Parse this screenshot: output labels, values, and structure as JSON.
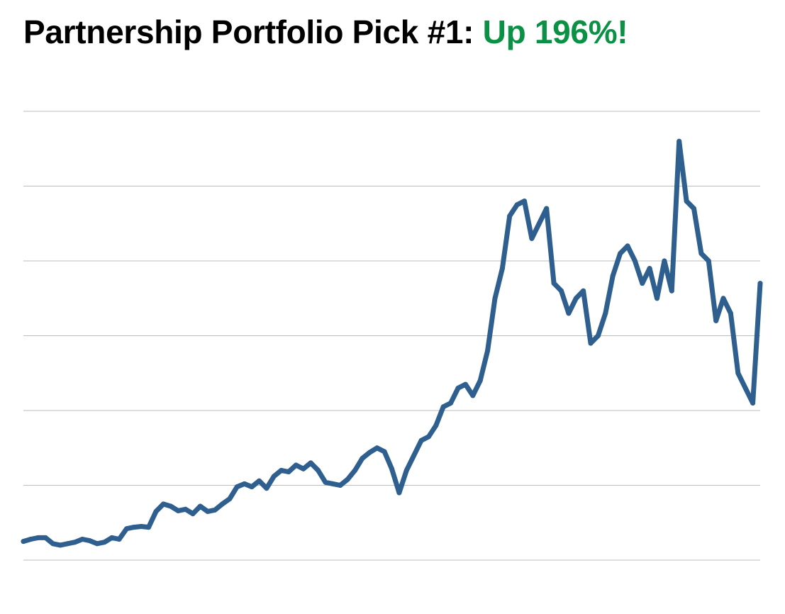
{
  "header": {
    "title": "Partnership Portfolio Pick #1:",
    "highlight": "Up 196%!"
  },
  "colors": {
    "line": "#2e5f8e",
    "gridline": "#bdbdbd",
    "highlight": "#0a9146",
    "title": "#000000"
  },
  "chart_data": {
    "type": "line",
    "title": "Partnership Portfolio Pick #1: Up 196%!",
    "xlabel": "",
    "ylabel": "",
    "y_tick_labels_shown": false,
    "x_tick_labels_shown": false,
    "grid": "horizontal",
    "ylim": [
      0,
      6
    ],
    "xlim": [
      0,
      100
    ],
    "series": [
      {
        "x": [
          0,
          1,
          2,
          3,
          4,
          5,
          6,
          7,
          8,
          9,
          10,
          11,
          12,
          13,
          14,
          15,
          16,
          17,
          18,
          19,
          20,
          21,
          22,
          23,
          24,
          25,
          26,
          27,
          28,
          29,
          30,
          31,
          32,
          33,
          34,
          35,
          36,
          37,
          38,
          39,
          40,
          41,
          42,
          43,
          44,
          45,
          46,
          47,
          48,
          49,
          50,
          51,
          52,
          53,
          54,
          55,
          56,
          57,
          58,
          59,
          60,
          61,
          62,
          63,
          64,
          65,
          66,
          67,
          68,
          69,
          70,
          71,
          72,
          73,
          74,
          75,
          76,
          77,
          78,
          79,
          80,
          81,
          82,
          83,
          84,
          85,
          86,
          87,
          88,
          89,
          90,
          91,
          92,
          93,
          94,
          95,
          96,
          97,
          98,
          99,
          100
        ],
        "values": [
          0.25,
          0.28,
          0.3,
          0.3,
          0.22,
          0.2,
          0.22,
          0.24,
          0.28,
          0.26,
          0.22,
          0.24,
          0.3,
          0.28,
          0.42,
          0.44,
          0.45,
          0.44,
          0.65,
          0.75,
          0.72,
          0.66,
          0.68,
          0.62,
          0.72,
          0.65,
          0.67,
          0.75,
          0.82,
          0.98,
          1.02,
          0.98,
          1.06,
          0.96,
          1.12,
          1.2,
          1.18,
          1.27,
          1.22,
          1.3,
          1.2,
          1.04,
          1.02,
          1.0,
          1.08,
          1.2,
          1.36,
          1.44,
          1.5,
          1.45,
          1.22,
          0.9,
          1.2,
          1.4,
          1.6,
          1.65,
          1.8,
          2.05,
          2.1,
          2.3,
          2.35,
          2.2,
          2.4,
          2.8,
          3.5,
          3.9,
          4.6,
          4.75,
          4.8,
          4.3,
          4.5,
          4.7,
          3.7,
          3.6,
          3.3,
          3.5,
          3.6,
          2.9,
          3.0,
          3.3,
          3.8,
          4.1,
          4.2,
          4.0,
          3.7,
          3.9,
          3.5,
          4.0,
          3.6,
          5.6,
          4.8,
          4.7,
          4.1,
          4.0,
          3.2,
          3.5,
          3.3,
          2.5,
          2.3,
          2.1,
          3.7
        ]
      }
    ]
  }
}
